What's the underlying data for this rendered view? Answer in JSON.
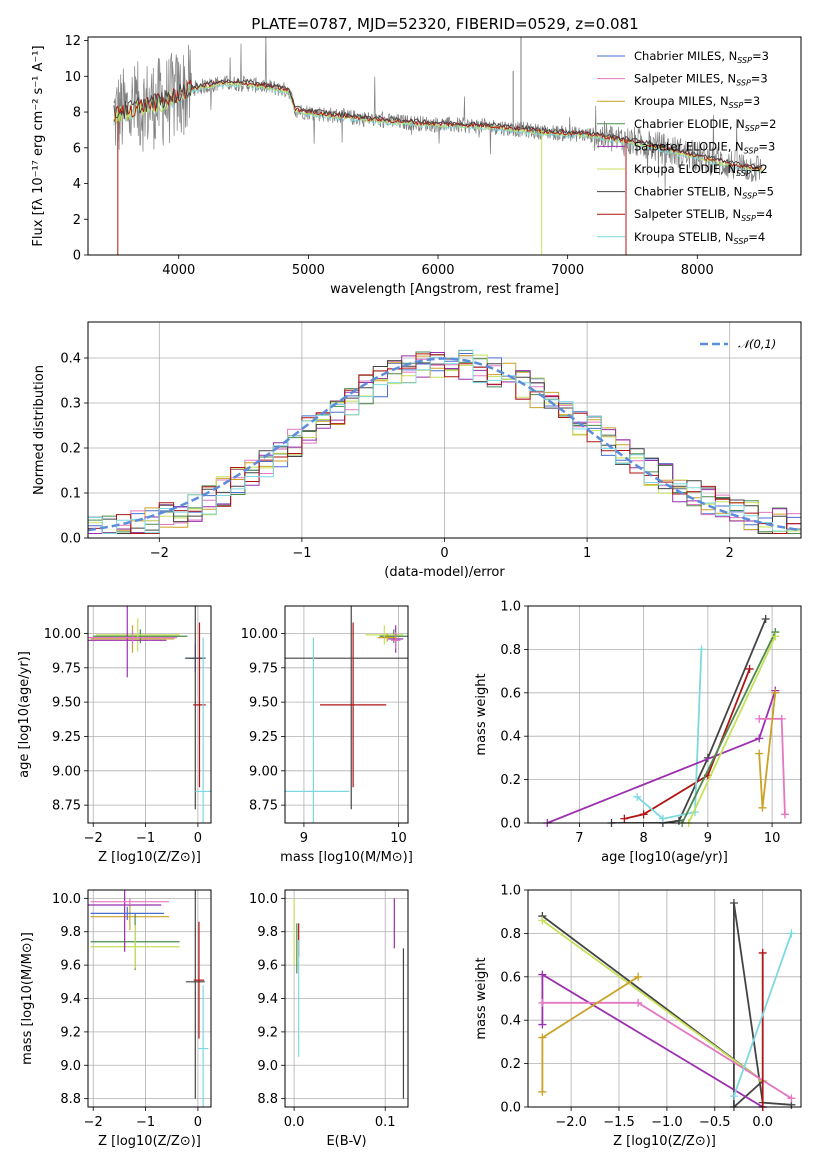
{
  "title": "PLATE=0787, MJD=52320, FIBERID=0529, z=0.081",
  "series_legend": [
    {
      "label": "Chabrier MILES, N",
      "sub": "SSP",
      "tail": "=3",
      "color": "#4a6fd0"
    },
    {
      "label": "Salpeter MILES, N",
      "sub": "SSP",
      "tail": "=3",
      "color": "#e377c2"
    },
    {
      "label": "Kroupa MILES, N",
      "sub": "SSP",
      "tail": "=3",
      "color": "#c9a227"
    },
    {
      "label": "Chabrier ELODIE, N",
      "sub": "SSP",
      "tail": "=2",
      "color": "#4c8a4c"
    },
    {
      "label": "Salpeter ELODIE, N",
      "sub": "SSP",
      "tail": "=3",
      "color": "#9b2fae"
    },
    {
      "label": "Kroupa ELODIE, N",
      "sub": "SSP",
      "tail": "=2",
      "color": "#c5e05a"
    },
    {
      "label": "Chabrier STELIB, N",
      "sub": "SSP",
      "tail": "=5",
      "color": "#444444"
    },
    {
      "label": "Salpeter STELIB, N",
      "sub": "SSP",
      "tail": "=4",
      "color": "#b01414"
    },
    {
      "label": "Kroupa STELIB, N",
      "sub": "SSP",
      "tail": "=4",
      "color": "#7fd8e0"
    }
  ],
  "chart_data": [
    {
      "type": "line",
      "name": "spectrum",
      "xlabel": "wavelength [Angstrom, rest frame]",
      "ylabel": "Flux [fλ 10⁻¹⁷ erg cm⁻² s⁻¹ A⁻¹]",
      "xlim": [
        3300,
        8800
      ],
      "ylim": [
        0,
        12.2
      ],
      "xticks": [
        4000,
        5000,
        6000,
        7000,
        8000
      ],
      "yticks": [
        0,
        2,
        4,
        6,
        8,
        10,
        12
      ],
      "model_curve": {
        "x": [
          3500,
          3700,
          3900,
          4100,
          4300,
          4500,
          4700,
          4850,
          4900,
          5200,
          5600,
          6000,
          6400,
          6800,
          7200,
          7600,
          8000,
          8300,
          8500
        ],
        "y": [
          7.8,
          8.3,
          8.6,
          9.3,
          9.6,
          9.6,
          9.4,
          9.2,
          8.1,
          7.8,
          7.5,
          7.3,
          7.2,
          6.9,
          6.7,
          6.2,
          5.5,
          5.0,
          4.8
        ]
      }
    },
    {
      "type": "histogram",
      "name": "residuals",
      "xlabel": "(data-model)/error",
      "ylabel": "Normed distribution",
      "xlim": [
        -2.5,
        2.5
      ],
      "ylim": [
        0,
        0.48
      ],
      "xticks": [
        -2,
        -1,
        0,
        1,
        2
      ],
      "yticks": [
        0.0,
        0.1,
        0.2,
        0.3,
        0.4
      ],
      "legend": "𝒩(0,1)",
      "gaussian": {
        "mean": 0,
        "sigma": 1
      }
    },
    {
      "type": "errorbar",
      "name": "age-vs-Z",
      "xlabel": "Z [log10(Z/Z⊙)]",
      "ylabel": "age [log10(age/yr)]",
      "xlim": [
        -2.1,
        0.25
      ],
      "ylim": [
        8.62,
        10.2
      ],
      "xticks": [
        -2,
        -1,
        0
      ],
      "yticks": [
        8.75,
        9.0,
        9.25,
        9.5,
        9.75,
        10.0
      ],
      "points": [
        {
          "x": -1.25,
          "y": 9.96,
          "xerr": 0.8,
          "yerr": 0.1,
          "c": 2
        },
        {
          "x": -1.1,
          "y": 9.98,
          "xerr": 0.9,
          "yerr": 0.05,
          "c": 3
        },
        {
          "x": -1.15,
          "y": 9.99,
          "xerr": 0.8,
          "yerr": 0.12,
          "c": 5
        },
        {
          "x": -1.35,
          "y": 9.95,
          "xerr": 0.75,
          "yerr": 0.27,
          "c": 4
        },
        {
          "x": -1.25,
          "y": 9.97,
          "xerr": 0.85,
          "yerr": 0.05,
          "c": 1
        },
        {
          "x": -0.05,
          "y": 9.82,
          "xerr": 0.2,
          "yerr": 0.1,
          "c": 0
        },
        {
          "x": -0.05,
          "y": 9.82,
          "xerr": 0.18,
          "yerr": 1.1,
          "c": 6
        },
        {
          "x": 0.03,
          "y": 9.48,
          "xerr": 0.12,
          "yerr": 0.6,
          "c": 7
        },
        {
          "x": 0.1,
          "y": 8.85,
          "xerr": 0.15,
          "yerr": 1.12,
          "c": 8
        }
      ]
    },
    {
      "type": "errorbar",
      "name": "age-vs-mass",
      "xlabel": "mass [log10(M/M⊙)]",
      "ylabel": "",
      "xlim": [
        8.8,
        10.1
      ],
      "ylim": [
        8.62,
        10.2
      ],
      "xticks": [
        9,
        10
      ],
      "yticks": [
        8.75,
        9.0,
        9.25,
        9.5,
        9.75,
        10.0
      ],
      "points": [
        {
          "x": 9.5,
          "y": 9.82,
          "xerr": 0.7,
          "yerr": 1.1,
          "c": 6
        },
        {
          "x": 9.52,
          "y": 9.48,
          "xerr": 0.35,
          "yerr": 0.6,
          "c": 7
        },
        {
          "x": 9.1,
          "y": 8.85,
          "xerr": 0.38,
          "yerr": 1.12,
          "c": 8
        },
        {
          "x": 9.95,
          "y": 9.98,
          "xerr": 0.15,
          "yerr": 0.05,
          "c": 3
        },
        {
          "x": 9.85,
          "y": 9.99,
          "xerr": 0.2,
          "yerr": 0.07,
          "c": 5
        },
        {
          "x": 9.97,
          "y": 9.96,
          "xerr": 0.08,
          "yerr": 0.1,
          "c": 4
        },
        {
          "x": 9.97,
          "y": 9.95,
          "xerr": 0.05,
          "yerr": 0.06,
          "c": 1
        },
        {
          "x": 9.88,
          "y": 9.97,
          "xerr": 0.1,
          "yerr": 0.03,
          "c": 2
        }
      ]
    },
    {
      "type": "line",
      "name": "massweight-vs-age",
      "xlabel": "age [log10(age/yr)]",
      "ylabel": "mass weight",
      "xlim": [
        6.2,
        10.45
      ],
      "ylim": [
        0,
        1.0
      ],
      "xticks": [
        7,
        8,
        9,
        10
      ],
      "yticks": [
        0.0,
        0.2,
        0.4,
        0.6,
        0.8,
        1.0
      ],
      "series": [
        {
          "c": 6,
          "x": [
            7.5,
            8.3,
            8.55,
            9.0,
            9.9
          ],
          "y": [
            0.0,
            0.0,
            0.01,
            0.3,
            0.94
          ]
        },
        {
          "c": 7,
          "x": [
            7.7,
            8.0,
            9.0,
            9.65
          ],
          "y": [
            0.02,
            0.04,
            0.22,
            0.71
          ]
        },
        {
          "c": 8,
          "x": [
            7.9,
            8.3,
            8.8,
            8.9
          ],
          "y": [
            0.12,
            0.02,
            0.05,
            0.8
          ]
        },
        {
          "c": 4,
          "x": [
            6.5,
            9.8,
            10.05
          ],
          "y": [
            0.0,
            0.39,
            0.61
          ]
        },
        {
          "c": 1,
          "x": [
            9.8,
            10.15,
            10.2
          ],
          "y": [
            0.48,
            0.48,
            0.04
          ]
        },
        {
          "c": 2,
          "x": [
            9.8,
            9.85,
            10.05
          ],
          "y": [
            0.32,
            0.07,
            0.6
          ]
        },
        {
          "c": 3,
          "x": [
            8.6,
            10.05
          ],
          "y": [
            0.0,
            0.88
          ]
        },
        {
          "c": 5,
          "x": [
            8.7,
            10.05
          ],
          "y": [
            0.0,
            0.86
          ]
        }
      ]
    },
    {
      "type": "errorbar",
      "name": "mass-vs-Z",
      "xlabel": "Z [log10(Z/Z⊙)]",
      "ylabel": "mass [log10(M/M⊙)]",
      "xlim": [
        -2.1,
        0.25
      ],
      "ylim": [
        8.75,
        10.05
      ],
      "xticks": [
        -2,
        -1,
        0
      ],
      "yticks": [
        8.8,
        9.0,
        9.2,
        9.4,
        9.6,
        9.8,
        10.0
      ],
      "points": [
        {
          "x": -1.3,
          "y": 9.89,
          "xerr": 0.75,
          "yerr": 0.08,
          "c": 2
        },
        {
          "x": -1.2,
          "y": 9.74,
          "xerr": 0.85,
          "yerr": 0.17,
          "c": 3
        },
        {
          "x": -1.2,
          "y": 9.71,
          "xerr": 0.85,
          "yerr": 0.13,
          "c": 5
        },
        {
          "x": -1.4,
          "y": 9.96,
          "xerr": 0.7,
          "yerr": 0.28,
          "c": 4
        },
        {
          "x": -1.35,
          "y": 9.91,
          "xerr": 0.7,
          "yerr": 0.04,
          "c": 0
        },
        {
          "x": -1.3,
          "y": 9.98,
          "xerr": 0.75,
          "yerr": 0.02,
          "c": 1
        },
        {
          "x": -0.05,
          "y": 9.5,
          "xerr": 0.18,
          "yerr": 0.7,
          "c": 6
        },
        {
          "x": 0.02,
          "y": 9.51,
          "xerr": 0.1,
          "yerr": 0.35,
          "c": 7
        },
        {
          "x": 0.1,
          "y": 9.1,
          "xerr": 0.1,
          "yerr": 0.38,
          "c": 8
        }
      ]
    },
    {
      "type": "errorbar",
      "name": "mass-vs-ebv",
      "xlabel": "E(B-V)",
      "ylabel": "",
      "xlim": [
        -0.01,
        0.125
      ],
      "ylim": [
        8.75,
        10.05
      ],
      "xticks": [
        0.0,
        0.1
      ],
      "yticks": [
        8.8,
        9.0,
        9.2,
        9.4,
        9.6,
        9.8,
        10.0
      ],
      "points": [
        {
          "x": 0.0,
          "y": 9.8,
          "yerr": 0.2,
          "c": 5
        },
        {
          "x": 0.003,
          "y": 9.7,
          "yerr": 0.15,
          "c": 3
        },
        {
          "x": 0.005,
          "y": 9.75,
          "yerr": 0.1,
          "c": 7
        },
        {
          "x": 0.005,
          "y": 9.4,
          "yerr": 0.35,
          "c": 8
        },
        {
          "x": 0.11,
          "y": 9.85,
          "yerr": 0.15,
          "c": 4
        },
        {
          "x": 0.12,
          "y": 9.25,
          "yerr": 0.45,
          "c": 6
        }
      ]
    },
    {
      "type": "line",
      "name": "massweight-vs-Z",
      "xlabel": "Z [log10(Z/Z⊙)]",
      "ylabel": "mass weight",
      "xlim": [
        -2.45,
        0.4
      ],
      "ylim": [
        0,
        1.0
      ],
      "xticks": [
        -2.0,
        -1.5,
        -1.0,
        -0.5,
        0.0
      ],
      "yticks": [
        0.0,
        0.2,
        0.4,
        0.6,
        0.8,
        1.0
      ],
      "series": [
        {
          "c": 6,
          "x": [
            -2.3,
            0.0,
            -0.3,
            -0.3,
            0.0,
            0.3
          ],
          "y": [
            0.88,
            0.12,
            0.0,
            0.94,
            0.02,
            0.01
          ]
        },
        {
          "c": 5,
          "x": [
            -2.3,
            0.0
          ],
          "y": [
            0.86,
            0.12
          ]
        },
        {
          "c": 4,
          "x": [
            -2.3,
            -2.3,
            0.0
          ],
          "y": [
            0.38,
            0.61,
            0.0
          ]
        },
        {
          "c": 1,
          "x": [
            -2.3,
            -1.3,
            0.3
          ],
          "y": [
            0.48,
            0.48,
            0.04
          ]
        },
        {
          "c": 2,
          "x": [
            -2.3,
            -2.3,
            -1.3
          ],
          "y": [
            0.07,
            0.32,
            0.6
          ]
        },
        {
          "c": 7,
          "x": [
            0.0,
            0.0
          ],
          "y": [
            0.0,
            0.71
          ]
        },
        {
          "c": 8,
          "x": [
            -0.3,
            0.3
          ],
          "y": [
            0.05,
            0.8
          ]
        }
      ]
    }
  ]
}
